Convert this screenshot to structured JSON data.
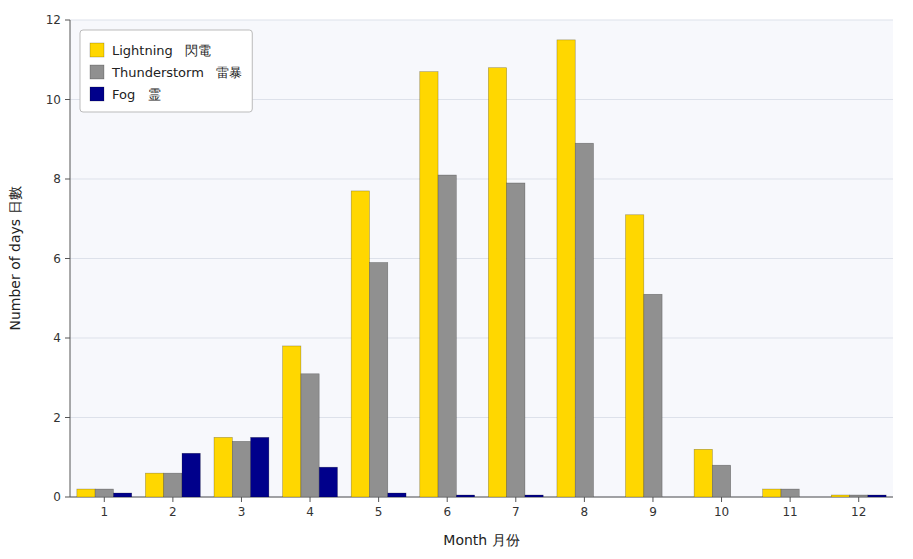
{
  "chart_data": {
    "type": "bar",
    "x_label": "Month 月份",
    "y_label": "Number of days 日數",
    "categories": [
      "1",
      "2",
      "3",
      "4",
      "5",
      "6",
      "7",
      "8",
      "9",
      "10",
      "11",
      "12"
    ],
    "series": [
      {
        "name": "Lightning   閃電",
        "color": "#FFD700",
        "values": [
          0.2,
          0.6,
          1.5,
          3.8,
          7.7,
          10.7,
          10.8,
          11.5,
          7.1,
          1.2,
          0.2,
          0.05
        ]
      },
      {
        "name": "Thunderstorm   雷暴",
        "color": "#909090",
        "values": [
          0.2,
          0.6,
          1.4,
          3.1,
          5.9,
          8.1,
          7.9,
          8.9,
          5.1,
          0.8,
          0.2,
          0.05
        ]
      },
      {
        "name": "Fog   霊",
        "color": "#00008B",
        "values": [
          0.1,
          1.1,
          1.5,
          0.75,
          0.1,
          0.05,
          0.05,
          0.0,
          0.0,
          0.0,
          0.0,
          0.05
        ]
      }
    ],
    "ylim": [
      0,
      12
    ],
    "yticks": [
      0,
      2,
      4,
      6,
      8,
      10,
      12
    ],
    "grid": true,
    "legend": "upper-left"
  }
}
